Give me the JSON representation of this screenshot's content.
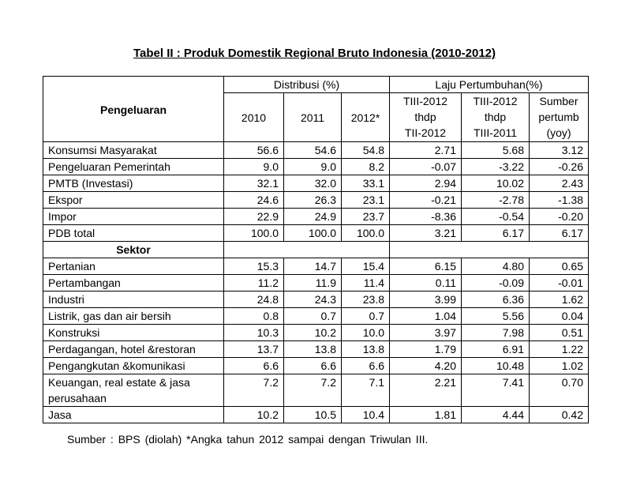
{
  "title": "Tabel II : Produk Domestik Regional Bruto Indonesia (2010-2012)",
  "header": {
    "pengeluaran": "Pengeluaran",
    "distribusi": "Distribusi  (%)",
    "laju": "Laju Pertumbuhan(%)",
    "years": [
      "2010",
      "2011",
      "2012*"
    ],
    "growth_cols": [
      [
        "TIII-2012",
        "thdp",
        "TII-2012"
      ],
      [
        "TIII-2012",
        "thdp",
        "TIII-2011"
      ],
      [
        "Sumber",
        "pertumb",
        "(yoy)"
      ]
    ]
  },
  "pengeluaran_rows": [
    {
      "label": "Konsumsi  Masyarakat",
      "values": [
        "56.6",
        "54.6",
        "54.8",
        "2.71",
        "5.68",
        "3.12"
      ]
    },
    {
      "label": "Pengeluaran  Pemerintah",
      "values": [
        "9.0",
        "9.0",
        "8.2",
        "-0.07",
        "-3.22",
        "-0.26"
      ]
    },
    {
      "label": "PMTB (Investasi)",
      "values": [
        "32.1",
        "32.0",
        "33.1",
        "2.94",
        "10.02",
        "2.43"
      ]
    },
    {
      "label": "Ekspor",
      "values": [
        "24.6",
        "26.3",
        "23.1",
        "-0.21",
        "-2.78",
        "-1.38"
      ]
    },
    {
      "label": "Impor",
      "values": [
        "22.9",
        "24.9",
        "23.7",
        "-8.36",
        "-0.54",
        "-0.20"
      ]
    },
    {
      "label": "PDB total",
      "values": [
        "100.0",
        "100.0",
        "100.0",
        "3.21",
        "6.17",
        "6.17"
      ]
    }
  ],
  "sektor_heading": "Sektor",
  "sektor_rows": [
    {
      "label": "Pertanian",
      "values": [
        "15.3",
        "14.7",
        "15.4",
        "6.15",
        "4.80",
        "0.65"
      ]
    },
    {
      "label": "Pertambangan",
      "values": [
        "11.2",
        "11.9",
        "11.4",
        "0.11",
        "-0.09",
        "-0.01"
      ]
    },
    {
      "label": "Industri",
      "values": [
        "24.8",
        "24.3",
        "23.8",
        "3.99",
        "6.36",
        "1.62"
      ]
    },
    {
      "label": "Listrik, gas dan air bersih",
      "values": [
        "0.8",
        "0.7",
        "0.7",
        "1.04",
        "5.56",
        "0.04"
      ]
    },
    {
      "label": "Konstruksi",
      "values": [
        "10.3",
        "10.2",
        "10.0",
        "3.97",
        "7.98",
        "0.51"
      ]
    },
    {
      "label": "Perdagangan,  hotel &restoran",
      "values": [
        "13.7",
        "13.8",
        "13.8",
        "1.79",
        "6.91",
        "1.22"
      ]
    },
    {
      "label": "Pengangkutan  &komunikasi",
      "values": [
        "6.6",
        "6.6",
        "6.6",
        "4.20",
        "10.48",
        "1.02"
      ]
    },
    {
      "label": "Keuangan,  real estate  & jasa perusahaan",
      "values": [
        "7.2",
        "7.2",
        "7.1",
        "2.21",
        "7.41",
        "0.70"
      ]
    },
    {
      "label": "Jasa",
      "values": [
        "10.2",
        "10.5",
        "10.4",
        "1.81",
        "4.44",
        "0.42"
      ]
    }
  ],
  "footnote": "Sumber : BPS (diolah)  *Angka tahun 2012 sampai dengan Triwulan III."
}
